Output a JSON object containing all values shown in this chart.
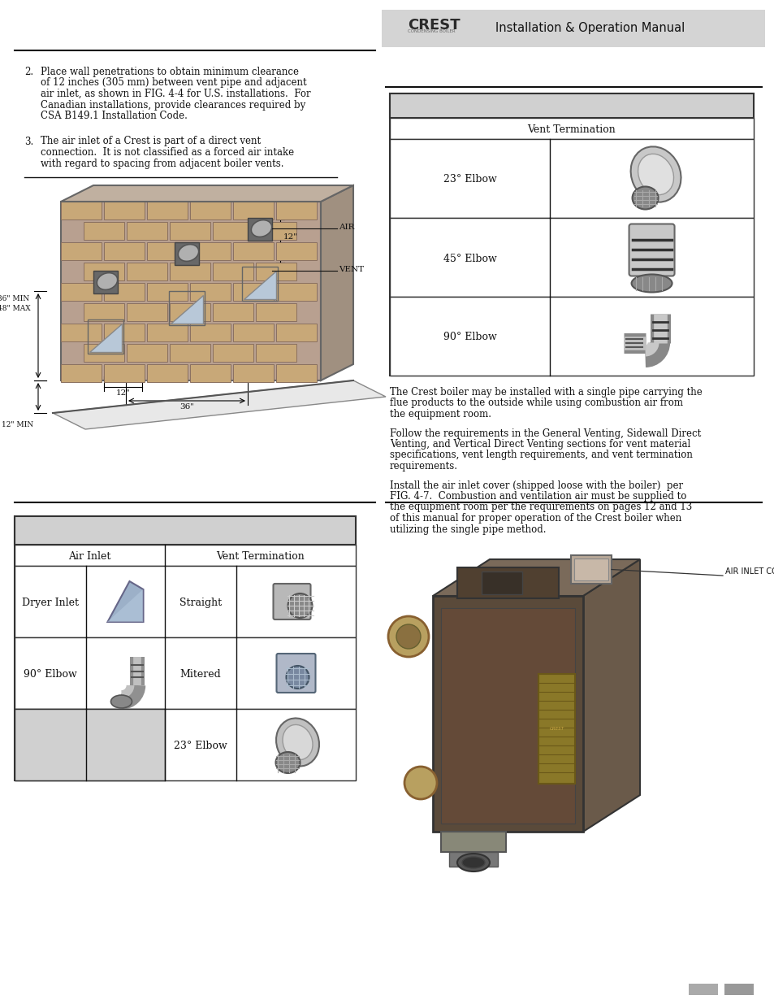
{
  "page_bg": "#ffffff",
  "header_bg": "#d4d4d4",
  "header_text": "Installation & Operation Manual",
  "header_logo": "CREST",
  "divider_color": "#111111",
  "body_text_color": "#111111",
  "table_border": "#333333",
  "table_header_bg": "#d0d0d0",
  "table_subheader_bg": "#ffffff",
  "table_cell_bg": "#ffffff",
  "table_gray_cell": "#d8d8d8",
  "point2_text_lines": [
    "Place wall penetrations to obtain minimum clearance",
    "of 12 inches (305 mm) between vent pipe and adjacent",
    "air inlet, as shown in FIG. 4-4 for U.S. installations.  For",
    "Canadian installations, provide clearances required by",
    "CSA B149.1 Installation Code."
  ],
  "point3_text_lines": [
    "The air inlet of a Crest is part of a direct vent",
    "connection.  It is not classified as a forced air intake",
    "with regard to spacing from adjacent boiler vents."
  ],
  "right_body1_lines": [
    "The Crest boiler may be installed with a single pipe carrying the",
    "flue products to the outside while using combustion air from",
    "the equipment room."
  ],
  "right_body2_lines": [
    "Follow the requirements in the General Venting, Sidewall Direct",
    "Venting, and Vertical Direct Venting sections for vent material",
    "specifications, vent length requirements, and vent termination",
    "requirements."
  ],
  "right_body3_lines": [
    "Install the air inlet cover (shipped loose with the boiler)  per",
    "FIG. 4-7.  Combustion and ventilation air must be supplied to",
    "the equipment room per the requirements on pages 12 and 13",
    "of this manual for proper operation of the Crest boiler when",
    "utilizing the single pipe method."
  ],
  "vent_table_header": "Vent Termination",
  "vent_rows": [
    "23° Elbow",
    "45° Elbow",
    "90° Elbow"
  ],
  "bottom_table_air_header": "Air Inlet",
  "bottom_table_vent_header": "Vent Termination",
  "bottom_air_rows": [
    "Dryer Inlet",
    "90° Elbow",
    ""
  ],
  "bottom_vent_rows": [
    "Straight",
    "Mitered",
    "23° Elbow"
  ],
  "air_inlet_cover_label": "AIR INLET COVER",
  "footer_gray1": "#aaaaaa",
  "footer_gray2": "#999999"
}
